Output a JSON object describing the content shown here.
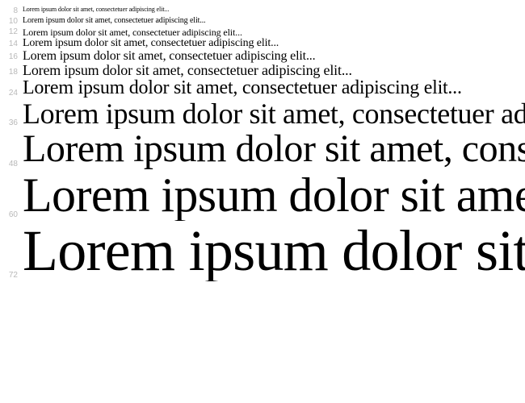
{
  "sample_text": "Lorem ipsum dolor sit amet, consectetuer adipiscing elit...",
  "label_color": "#b8b8b8",
  "text_color": "#000000",
  "background_color": "#ffffff",
  "font_family": "cursive",
  "rows": [
    {
      "size": 8,
      "label": "8"
    },
    {
      "size": 10,
      "label": "10"
    },
    {
      "size": 12,
      "label": "12"
    },
    {
      "size": 14,
      "label": "14"
    },
    {
      "size": 16,
      "label": "16"
    },
    {
      "size": 18,
      "label": "18"
    },
    {
      "size": 24,
      "label": "24"
    },
    {
      "size": 36,
      "label": "36"
    },
    {
      "size": 48,
      "label": "48"
    },
    {
      "size": 60,
      "label": "60"
    },
    {
      "size": 72,
      "label": "72"
    }
  ]
}
